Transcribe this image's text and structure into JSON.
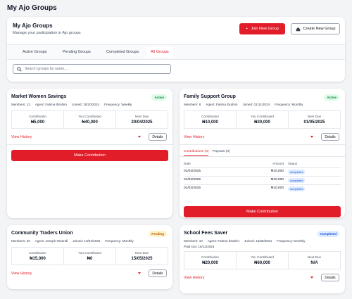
{
  "page_title": "My Ajo Groups",
  "header": {
    "title": "My Ajo Groups",
    "subtitle": "Manage your participation in Ajo groups",
    "join_button": "Join New Group",
    "create_button": "Create New Group"
  },
  "tabs": [
    "Active Groups",
    "Pending Groups",
    "Completed Groups",
    "All Groups"
  ],
  "search_placeholder": "Search groups by name...",
  "groups": [
    {
      "name": "Market Women Savings",
      "status": "Active",
      "meta": [
        "Members: 12",
        "Agent: Fatima Ibrahim",
        "Joined: 15/10/2024",
        "Frequency: Weekly"
      ],
      "stats": [
        {
          "label": "Contribution",
          "value": "₦5,000"
        },
        {
          "label": "You Contributed",
          "value": "₦40,000"
        },
        {
          "label": "Next Due",
          "value": "20/04/2025"
        }
      ],
      "history_link": "View History",
      "details_button": "Details",
      "action_button": "Make Contribution"
    },
    {
      "name": "Family Support Group",
      "status": "Active",
      "meta": [
        "Members: 8",
        "Agent: Fatima Ibrahim",
        "Joined: 01/11/2024",
        "Frequency: Monthly"
      ],
      "stats": [
        {
          "label": "Contribution",
          "value": "₦10,000"
        },
        {
          "label": "You Contributed",
          "value": "₦30,000"
        },
        {
          "label": "Next Due",
          "value": "01/05/2025"
        }
      ],
      "history_link": "View History",
      "details_button": "Details",
      "history": {
        "tabs": [
          "Contributions (3)",
          "Payouts (0)"
        ],
        "columns": [
          "Date",
          "Amount",
          "Status"
        ],
        "rows": [
          [
            "01/04/2025",
            "₦10,000",
            "completed"
          ],
          [
            "01/03/2025",
            "₦10,000",
            "completed"
          ],
          [
            "01/02/2025",
            "₦10,000",
            "completed"
          ]
        ]
      },
      "action_button": "Make Contribution"
    },
    {
      "name": "Community Traders Union",
      "status": "Pending",
      "meta": [
        "Members: 20",
        "Agent: Joseph Nnamdi",
        "Joined: 10/04/2025",
        "Frequency: Monthly"
      ],
      "stats": [
        {
          "label": "Contribution",
          "value": "₦15,000"
        },
        {
          "label": "You Contributed",
          "value": "₦0"
        },
        {
          "label": "Next Due",
          "value": "15/05/2025"
        }
      ],
      "history_link": "View History",
      "details_button": "Details"
    },
    {
      "name": "School Fees Saver",
      "status": "Completed",
      "meta": [
        "Members: 10",
        "Agent: Fatima Ibrahim",
        "Joined: 15/05/2024",
        "Frequency: Monthly",
        "Paid Out: 15/12/2024"
      ],
      "stats": [
        {
          "label": "Contribution",
          "value": "₦20,000"
        },
        {
          "label": "You Contributed",
          "value": "₦60,000"
        },
        {
          "label": "Next Due",
          "value": "N/A"
        }
      ],
      "history_link": "View History",
      "details_button": "Details"
    }
  ]
}
